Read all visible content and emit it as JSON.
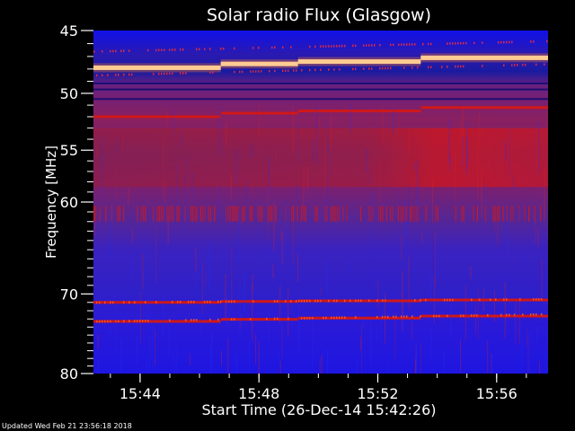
{
  "chart_data": {
    "type": "heatmap",
    "title": "Solar radio Flux (Glasgow)",
    "ylabel": "Frequency [MHz]",
    "xlabel": "Start Time (26-Dec-14 15:42:26)",
    "footer": "Updated Wed Feb 21 23:56:18 2018",
    "x_ticks": [
      "15:44",
      "15:48",
      "15:52",
      "15:56"
    ],
    "x_tick_minutes": [
      1.57,
      5.57,
      9.57,
      13.57
    ],
    "x_range_minutes": [
      0,
      15.3
    ],
    "y_ticks": [
      45,
      50,
      55,
      60,
      70,
      80
    ],
    "y_range": [
      45,
      80
    ],
    "y_scale": "log",
    "colors": {
      "background": "#000000",
      "low": "#1a1aff",
      "mid": "#7a1a8c",
      "high": "#d01818",
      "peak": "#fff6d0"
    },
    "bands": [
      {
        "label": "bright narrowband emission",
        "freq_start": 47.9,
        "freq_end": 46.8,
        "level": "peak"
      },
      {
        "label": "strong line",
        "freq_start": 52.0,
        "freq_end": 50.9,
        "level": "high"
      },
      {
        "label": "broad enhancement",
        "freq_start": 53.0,
        "freq_end": 58.5,
        "level": "high"
      },
      {
        "label": "striated band",
        "freq_start": 60.4,
        "freq_end": 62.0,
        "level": "high"
      },
      {
        "label": "line",
        "freq_start": 71.0,
        "freq_end": 70.6,
        "level": "high"
      },
      {
        "label": "line",
        "freq_start": 73.3,
        "freq_end": 72.4,
        "level": "high"
      }
    ]
  }
}
